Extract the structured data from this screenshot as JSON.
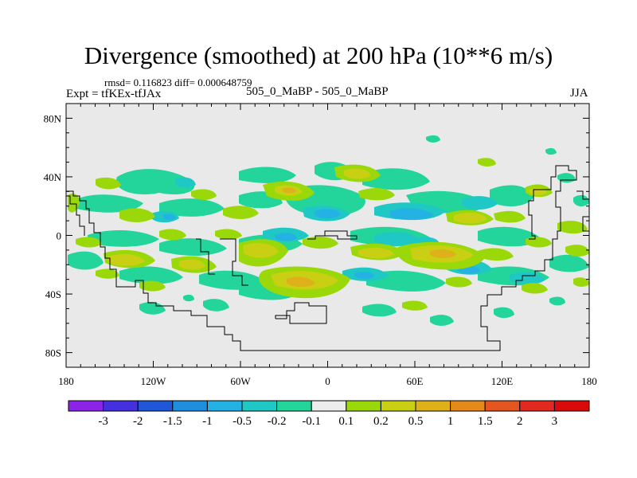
{
  "header": {
    "title": "Divergence (smoothed) at 200 hPa (10**6 m/s)",
    "stats": "rmsd= 0.116823 diff= 0.000648759",
    "expt": "Expt = tfKEx-tfJAx",
    "cases": "505_0_MaBP - 505_0_MaBP",
    "season": "JJA"
  },
  "chart_data": {
    "type": "heatmap",
    "title": "Divergence (smoothed) at 200 hPa (10**6 m/s)",
    "xlabel": "",
    "ylabel": "",
    "xlim": [
      -180,
      180
    ],
    "ylim": [
      -90,
      90
    ],
    "x_ticks": [
      {
        "value": -180,
        "label": "180"
      },
      {
        "value": -120,
        "label": "120W"
      },
      {
        "value": -60,
        "label": "60W"
      },
      {
        "value": 0,
        "label": "0"
      },
      {
        "value": 60,
        "label": "60E"
      },
      {
        "value": 120,
        "label": "120E"
      },
      {
        "value": 180,
        "label": "180"
      }
    ],
    "y_ticks": [
      {
        "value": 80,
        "label": "80N"
      },
      {
        "value": 40,
        "label": "40N"
      },
      {
        "value": 0,
        "label": "0"
      },
      {
        "value": -40,
        "label": "40S"
      },
      {
        "value": -80,
        "label": "80S"
      }
    ],
    "colorbar": {
      "labels": [
        "-3",
        "-2",
        "-1.5",
        "-1",
        "-0.5",
        "-0.2",
        "-0.1",
        "0.1",
        "0.2",
        "0.5",
        "1",
        "1.5",
        "2",
        "3"
      ],
      "colors": [
        "#8c24e8",
        "#4530df",
        "#1f57d8",
        "#1f8edc",
        "#23b2e3",
        "#1fc8c5",
        "#23d49b",
        "#ececec",
        "#9ad80a",
        "#c9cf12",
        "#deb11a",
        "#e4891a",
        "#e4561f",
        "#e02a1f",
        "#d80a0a"
      ]
    },
    "background_color": "#e9e9e9",
    "features": [
      {
        "name": "positive divergence",
        "value": 0.2,
        "lon": -173,
        "lat": 8,
        "rlon": 7,
        "rlat": 4
      },
      {
        "name": "positive divergence",
        "value": 0.2,
        "lon": -163,
        "lat": -18,
        "rlon": 10,
        "rlat": 6
      },
      {
        "name": "positive divergence",
        "value": 0.2,
        "lon": -128,
        "lat": 15,
        "rlon": 8,
        "rlat": 5
      },
      {
        "name": "positive divergence",
        "value": 0.2,
        "lon": -135,
        "lat": -17,
        "rlon": 7,
        "rlat": 4
      },
      {
        "name": "positive divergence",
        "value": 0.2,
        "lon": -98,
        "lat": 5,
        "rlon": 6,
        "rlat": 4
      },
      {
        "name": "positive divergence",
        "value": 0.2,
        "lon": -78,
        "lat": 16,
        "rlon": 7,
        "rlat": 4
      },
      {
        "name": "positive divergence",
        "value": 0.5,
        "lon": -58,
        "lat": -15,
        "rlon": 8,
        "rlat": 8
      },
      {
        "name": "positive divergence",
        "value": 0.5,
        "lon": -17,
        "lat": 28,
        "rlon": 10,
        "rlat": 7
      },
      {
        "name": "positive divergence",
        "value": 0.5,
        "lon": -13,
        "lat": -31,
        "rlon": 16,
        "rlat": 7
      },
      {
        "name": "positive divergence",
        "value": 0.2,
        "lon": 30,
        "lat": 27,
        "rlon": 12,
        "rlat": 5
      },
      {
        "name": "positive divergence",
        "value": 0.2,
        "lon": 63,
        "lat": -15,
        "rlon": 12,
        "rlat": 5
      },
      {
        "name": "positive divergence",
        "value": 0.5,
        "lon": 120,
        "lat": 10,
        "rlon": 12,
        "rlat": 8
      },
      {
        "name": "positive divergence",
        "value": 0.2,
        "lon": 160,
        "lat": -22,
        "rlon": 8,
        "rlat": 4
      },
      {
        "name": "negative divergence",
        "value": -0.2,
        "lon": -115,
        "lat": -3,
        "rlon": 9,
        "rlat": 5
      },
      {
        "name": "negative divergence",
        "value": -0.2,
        "lon": -5,
        "lat": 2,
        "rlon": 12,
        "rlat": 8
      },
      {
        "name": "negative divergence",
        "value": -0.5,
        "lon": 60,
        "lat": 10,
        "rlon": 15,
        "rlat": 4
      },
      {
        "name": "negative divergence",
        "value": -0.2,
        "lon": 92,
        "lat": -33,
        "rlon": 14,
        "rlat": 7
      },
      {
        "name": "negative divergence",
        "value": -0.2,
        "lon": 125,
        "lat": -10,
        "rlon": 10,
        "rlat": 5
      }
    ]
  }
}
